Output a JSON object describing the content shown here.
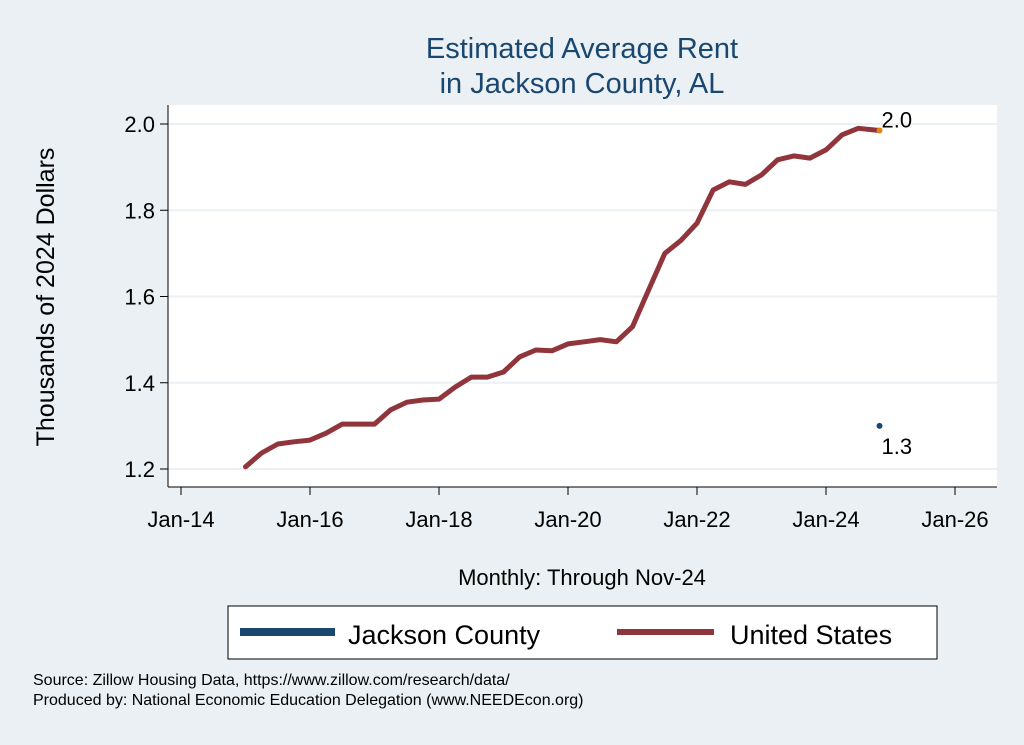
{
  "chart_data": {
    "type": "line",
    "title": [
      "Estimated Average Rent",
      "in Jackson County, AL"
    ],
    "xlabel": "Monthly: Through Nov-24",
    "ylabel": "Thousands of 2024 Dollars",
    "xlim": [
      2013.8,
      2026.7
    ],
    "ylim": [
      1.16,
      2.04
    ],
    "x_ticks": [
      2014,
      2016,
      2018,
      2020,
      2022,
      2024,
      2026
    ],
    "x_tick_labels": [
      "Jan-14",
      "Jan-16",
      "Jan-18",
      "Jan-20",
      "Jan-22",
      "Jan-24",
      "Jan-26"
    ],
    "y_ticks": [
      1.2,
      1.4,
      1.6,
      1.8,
      2.0
    ],
    "y_tick_labels": [
      "1.2",
      "1.4",
      "1.6",
      "1.8",
      "2.0"
    ],
    "grid": true,
    "series": [
      {
        "name": "Jackson County",
        "color": "#1a476f",
        "x": [
          2024.83
        ],
        "values": [
          1.3
        ],
        "end_label": "1.3"
      },
      {
        "name": "United States",
        "color": "#90353b",
        "end_marker_color": "#e8830c",
        "x": [
          2015.0,
          2015.25,
          2015.5,
          2015.75,
          2016.0,
          2016.25,
          2016.5,
          2016.75,
          2017.0,
          2017.25,
          2017.5,
          2017.75,
          2018.0,
          2018.25,
          2018.5,
          2018.75,
          2019.0,
          2019.25,
          2019.5,
          2019.75,
          2020.0,
          2020.25,
          2020.5,
          2020.75,
          2021.0,
          2021.25,
          2021.5,
          2021.75,
          2022.0,
          2022.25,
          2022.5,
          2022.75,
          2023.0,
          2023.25,
          2023.5,
          2023.75,
          2024.0,
          2024.25,
          2024.5,
          2024.75,
          2024.83
        ],
        "values": [
          1.205,
          1.237,
          1.258,
          1.263,
          1.267,
          1.283,
          1.304,
          1.304,
          1.304,
          1.337,
          1.355,
          1.36,
          1.362,
          1.39,
          1.413,
          1.413,
          1.425,
          1.46,
          1.476,
          1.474,
          1.49,
          1.495,
          1.5,
          1.495,
          1.53,
          1.615,
          1.7,
          1.73,
          1.77,
          1.847,
          1.866,
          1.86,
          1.882,
          1.917,
          1.926,
          1.921,
          1.94,
          1.975,
          1.99,
          1.986,
          1.985
        ],
        "end_label": "2.0"
      }
    ],
    "legend": {
      "placement": "bottom",
      "entries": [
        "Jackson County",
        "United States"
      ]
    }
  },
  "footer": {
    "source": "Source: Zillow Housing Data, https://www.zillow.com/research/data/",
    "produced_by": "Produced by: National Economic Education Delegation (www.NEEDEcon.org)"
  }
}
